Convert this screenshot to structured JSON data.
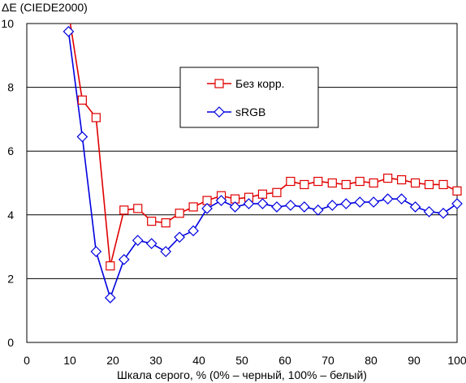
{
  "chart_data": {
    "type": "line",
    "title": "",
    "ylabel": "ΔE (CIEDE2000)",
    "xlabel": "Шкала серого, % (0% – черный, 100% – белый)",
    "xlim": [
      0,
      100
    ],
    "ylim": [
      0,
      10
    ],
    "xticks": [
      0,
      10,
      20,
      30,
      40,
      50,
      60,
      70,
      80,
      90,
      100
    ],
    "yticks": [
      0,
      2,
      4,
      6,
      8,
      10
    ],
    "grid": "horizontal",
    "legend_position": "center-right",
    "colors": {
      "Без корр.": "#e00000",
      "sRGB": "#0000e0"
    },
    "x": [
      9.7,
      12.9,
      16.1,
      19.4,
      22.6,
      25.8,
      29.0,
      32.3,
      35.5,
      38.7,
      41.9,
      45.2,
      48.4,
      51.6,
      54.8,
      58.1,
      61.3,
      64.5,
      67.7,
      71.0,
      74.2,
      77.4,
      80.6,
      83.9,
      87.1,
      90.3,
      93.5,
      96.8,
      100.0
    ],
    "series": [
      {
        "name": "Без корр.",
        "marker": "square",
        "values": [
          10.35,
          7.6,
          7.05,
          2.4,
          4.15,
          4.2,
          3.8,
          3.75,
          4.05,
          4.25,
          4.45,
          4.6,
          4.5,
          4.55,
          4.65,
          4.7,
          5.05,
          4.95,
          5.05,
          5.0,
          4.95,
          5.05,
          5.0,
          5.15,
          5.1,
          5.0,
          4.95,
          4.95,
          4.75
        ]
      },
      {
        "name": "sRGB",
        "marker": "diamond",
        "values": [
          9.75,
          6.45,
          2.85,
          1.4,
          2.6,
          3.2,
          3.1,
          2.85,
          3.3,
          3.5,
          4.2,
          4.45,
          4.25,
          4.35,
          4.35,
          4.25,
          4.3,
          4.25,
          4.15,
          4.3,
          4.35,
          4.4,
          4.4,
          4.5,
          4.5,
          4.25,
          4.1,
          4.05,
          4.35
        ]
      }
    ]
  }
}
